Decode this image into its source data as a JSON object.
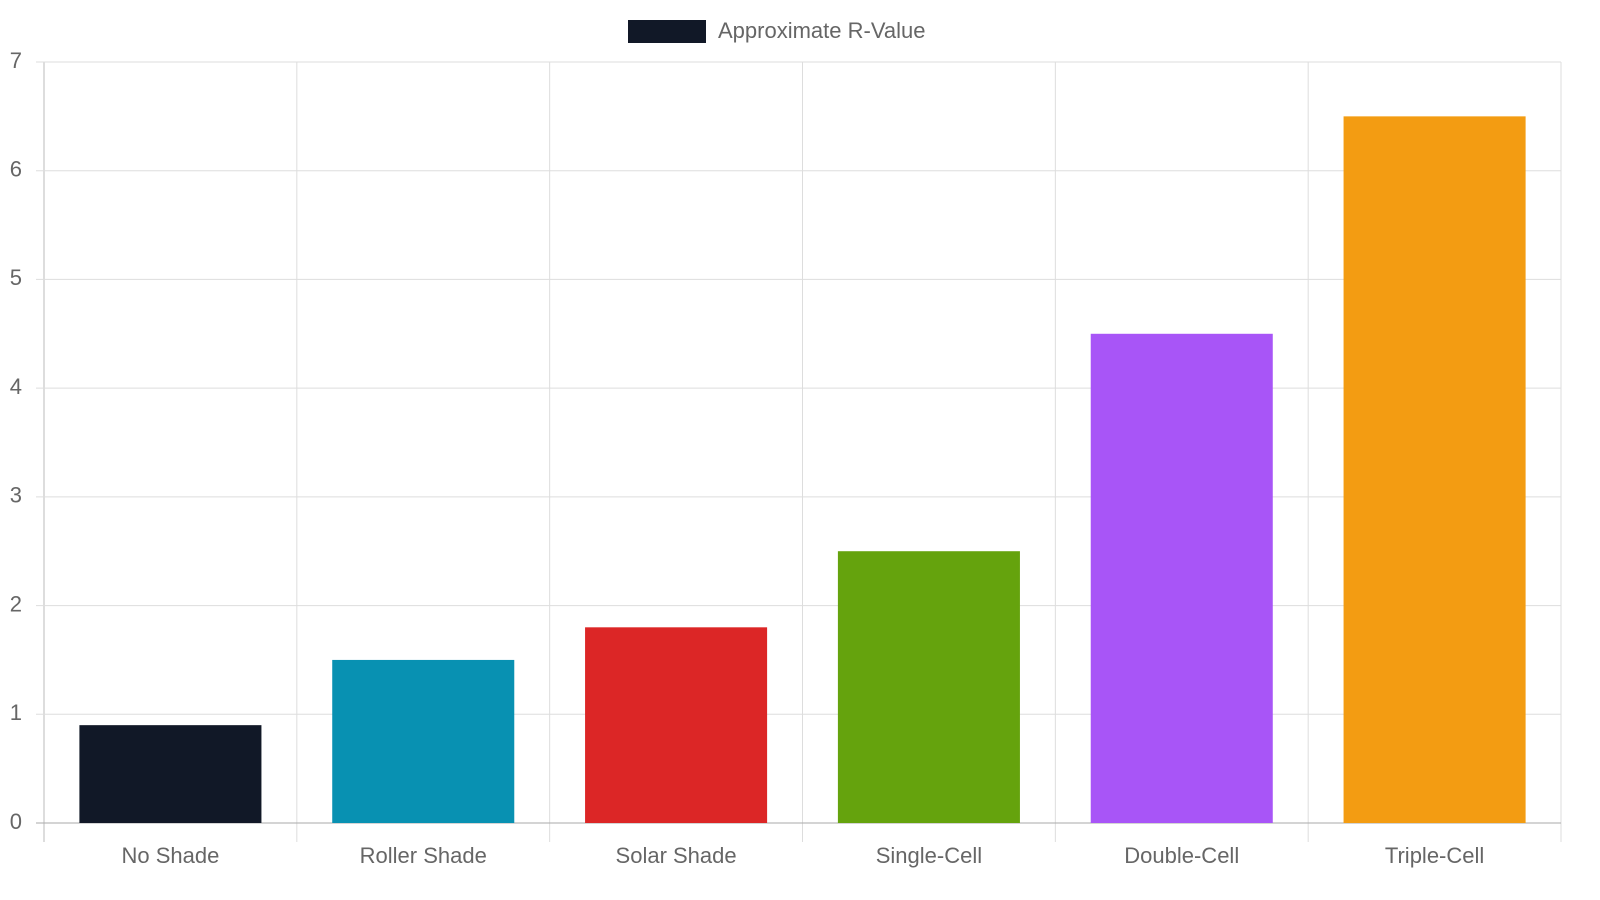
{
  "chart_data": {
    "type": "bar",
    "categories": [
      "No Shade",
      "Roller Shade",
      "Solar Shade",
      "Single-Cell",
      "Double-Cell",
      "Triple-Cell"
    ],
    "series": [
      {
        "name": "Approximate R-Value",
        "color": "#111827",
        "bar_colors": [
          "#111827",
          "#0891b2",
          "#dc2626",
          "#65a30d",
          "#a855f7",
          "#f39c12"
        ],
        "values": [
          0.9,
          1.5,
          1.8,
          2.5,
          4.5,
          6.5
        ]
      }
    ],
    "ylim": [
      0,
      7
    ],
    "yticks": [
      0,
      1,
      2,
      3,
      4,
      5,
      6,
      7
    ],
    "grid": true,
    "legend": "top"
  }
}
